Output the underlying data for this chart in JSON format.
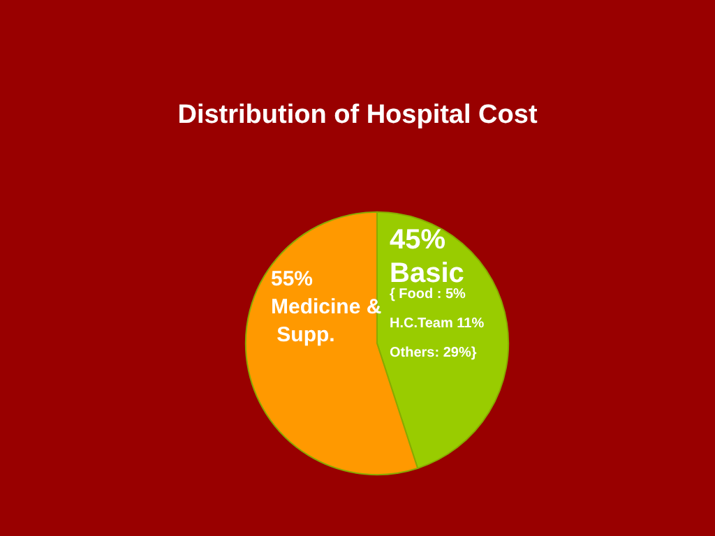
{
  "chart_data": {
    "type": "pie",
    "title": "Distribution of Hospital Cost",
    "categories": [
      "Basic",
      "Medicine & Supp."
    ],
    "values": [
      45,
      55
    ],
    "colors": [
      "#99cc00",
      "#ff9900"
    ],
    "value_labels": [
      "45%",
      "55%"
    ],
    "annotations": [
      "{ Food : 5%",
      "H.C.Team 11%",
      "Others: 29%}"
    ]
  }
}
